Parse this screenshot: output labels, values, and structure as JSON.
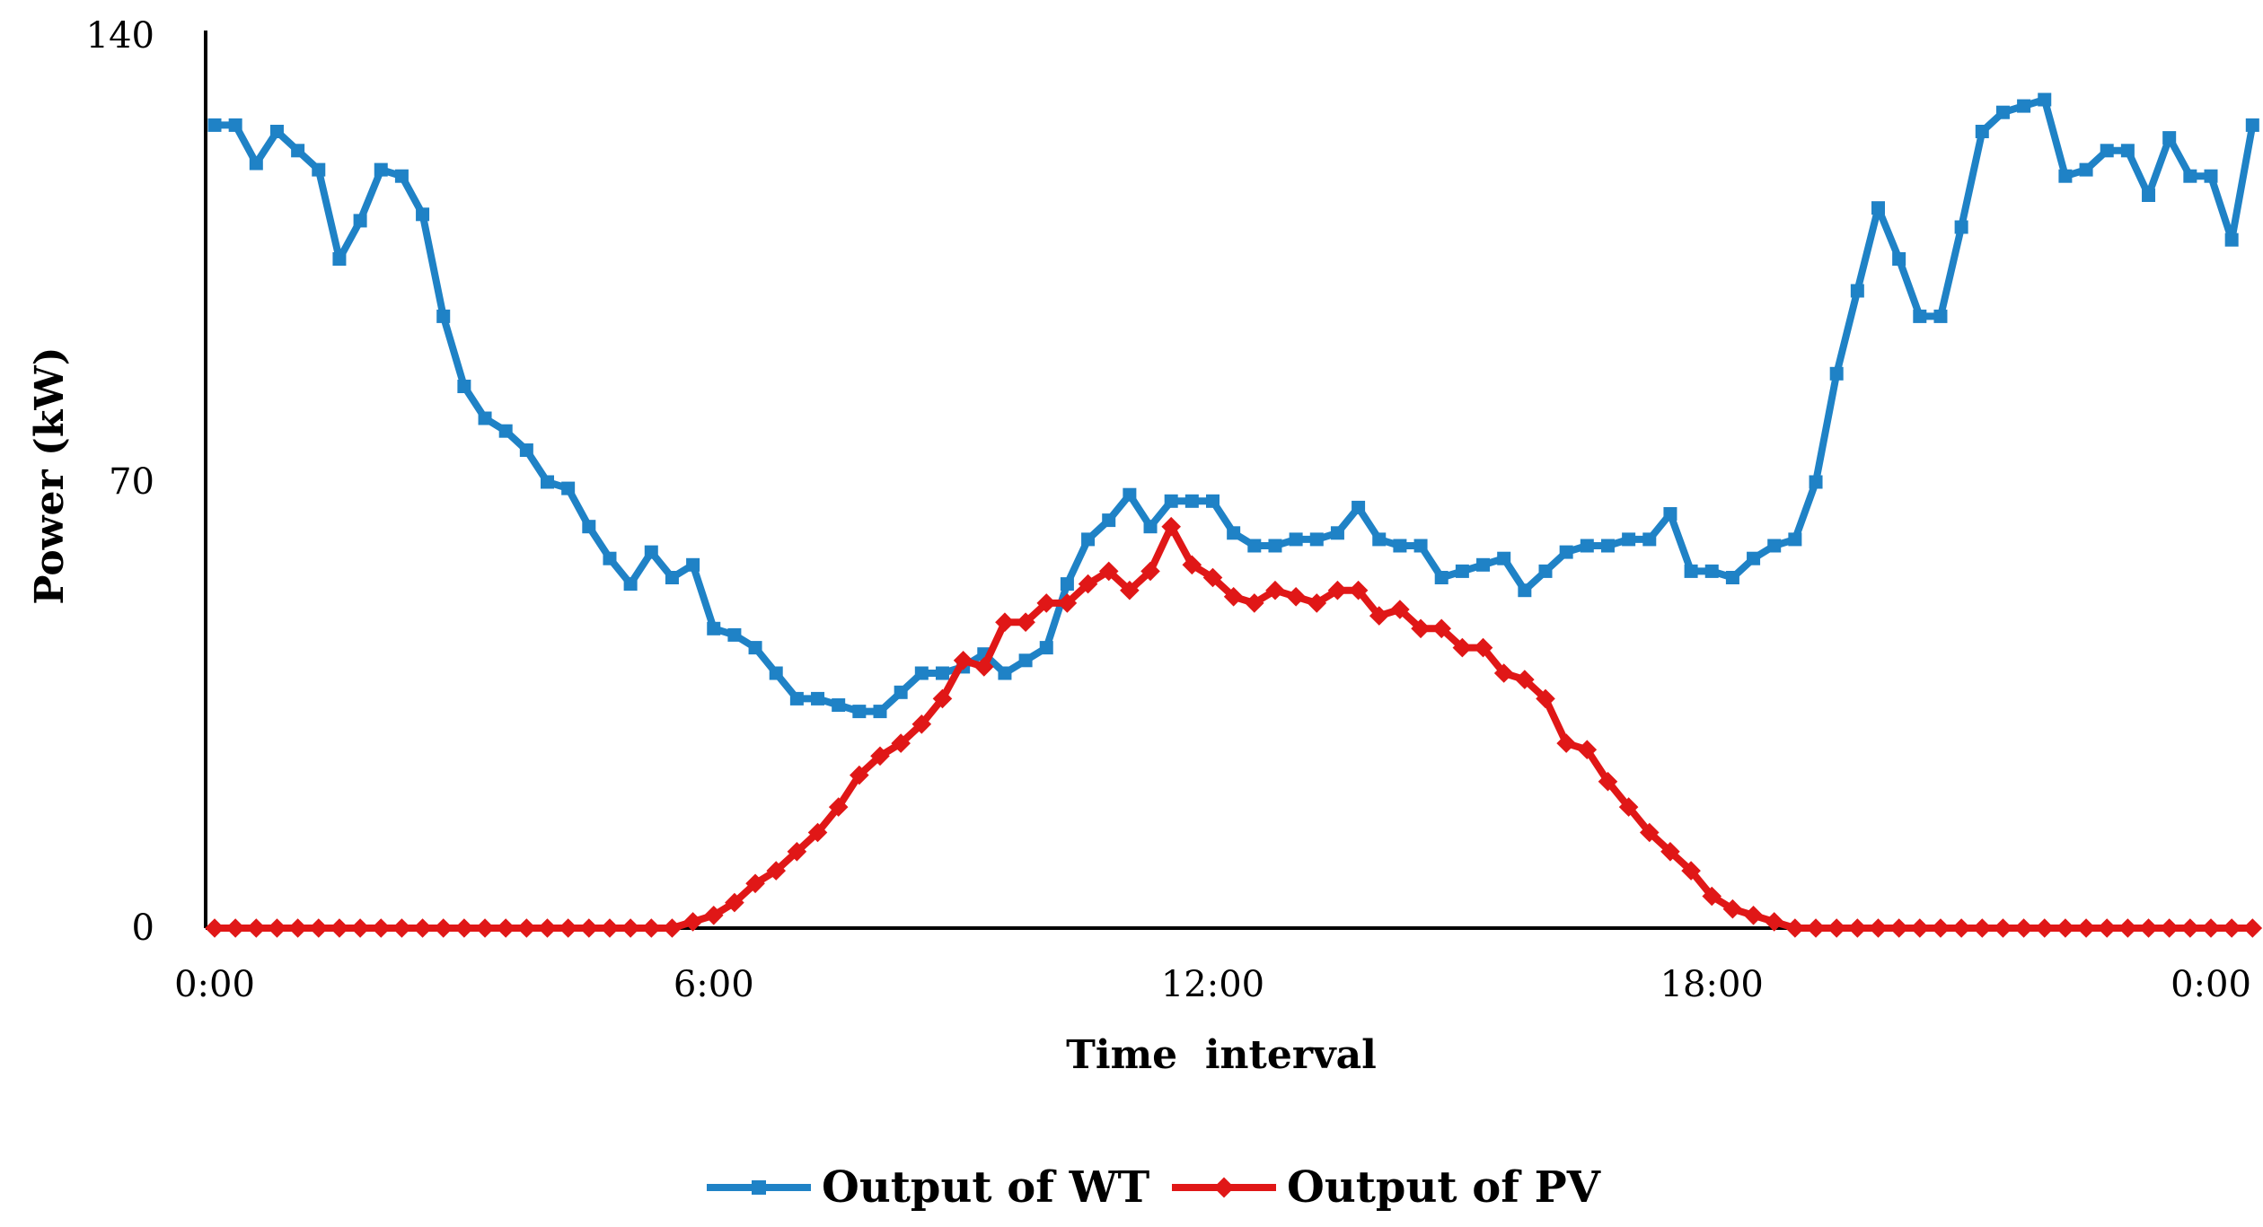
{
  "chart_data": {
    "type": "line",
    "title": "",
    "xlabel": "Time  interval",
    "ylabel": "Power (kW)",
    "ylim": [
      0,
      140
    ],
    "xlim": [
      0,
      24
    ],
    "y_ticks": [
      "0",
      "70",
      "140"
    ],
    "x_ticks": [
      {
        "value": 0,
        "label": "0:00"
      },
      {
        "value": 6,
        "label": "6:00"
      },
      {
        "value": 12,
        "label": "12:00"
      },
      {
        "value": 18,
        "label": "18:00"
      },
      {
        "value": 24,
        "label": "0:00"
      }
    ],
    "grid": false,
    "legend_position": "bottom-center",
    "x_step_hours": 0.25,
    "series": [
      {
        "name": "Output of WT",
        "color": "#1f82c6",
        "marker": "square",
        "values": [
          126,
          126,
          120,
          125,
          122,
          119,
          105,
          111,
          119,
          118,
          112,
          96,
          85,
          80,
          78,
          75,
          70,
          69,
          63,
          58,
          54,
          59,
          55,
          57,
          47,
          46,
          44,
          40,
          36,
          36,
          35,
          34,
          34,
          37,
          40,
          40,
          41,
          43,
          40,
          42,
          44,
          54,
          61,
          64,
          68,
          63,
          67,
          67,
          67,
          62,
          60,
          60,
          61,
          61,
          62,
          66,
          61,
          60,
          60,
          55,
          56,
          57,
          58,
          53,
          56,
          59,
          60,
          60,
          61,
          61,
          65,
          56,
          56,
          55,
          58,
          60,
          61,
          70,
          87,
          100,
          113,
          105,
          96,
          96,
          110,
          125,
          128,
          129,
          130,
          118,
          119,
          122,
          122,
          115,
          124,
          118,
          118,
          108,
          126
        ]
      },
      {
        "name": "Output of PV",
        "color": "#e01717",
        "marker": "diamond",
        "values": [
          0,
          0,
          0,
          0,
          0,
          0,
          0,
          0,
          0,
          0,
          0,
          0,
          0,
          0,
          0,
          0,
          0,
          0,
          0,
          0,
          0,
          0,
          0,
          1,
          2,
          4,
          7,
          9,
          12,
          15,
          19,
          24,
          27,
          29,
          32,
          36,
          42,
          41,
          48,
          48,
          51,
          51,
          54,
          56,
          53,
          56,
          63,
          57,
          55,
          52,
          51,
          53,
          52,
          51,
          53,
          53,
          49,
          50,
          47,
          47,
          44,
          44,
          40,
          39,
          36,
          29,
          28,
          23,
          19,
          15,
          12,
          9,
          5,
          3,
          2,
          1,
          0,
          0,
          0,
          0,
          0,
          0,
          0,
          0,
          0,
          0,
          0,
          0,
          0,
          0,
          0,
          0,
          0,
          0,
          0,
          0,
          0,
          0,
          0
        ]
      }
    ]
  }
}
